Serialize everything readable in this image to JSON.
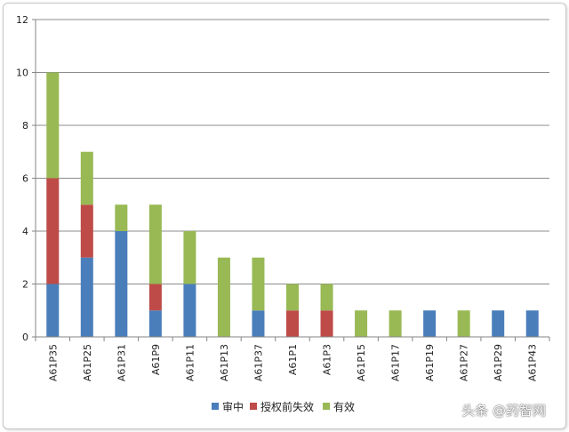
{
  "chart_data": {
    "type": "bar",
    "stacked": true,
    "categories": [
      "A61P35",
      "A61P25",
      "A61P31",
      "A61P9",
      "A61P11",
      "A61P13",
      "A61P37",
      "A61P1",
      "A61P3",
      "A61P15",
      "A61P17",
      "A61P19",
      "A61P27",
      "A61P29",
      "A61P43"
    ],
    "series": [
      {
        "name": "审中",
        "color": "#4a7ebb",
        "values": [
          2,
          3,
          4,
          1,
          2,
          0,
          1,
          0,
          0,
          0,
          0,
          1,
          0,
          1,
          1
        ]
      },
      {
        "name": "授权前失效",
        "color": "#be4b48",
        "values": [
          4,
          2,
          0,
          1,
          0,
          0,
          0,
          1,
          1,
          0,
          0,
          0,
          0,
          0,
          0
        ]
      },
      {
        "name": "有效",
        "color": "#98b954",
        "values": [
          4,
          2,
          1,
          3,
          2,
          3,
          2,
          1,
          1,
          1,
          1,
          0,
          1,
          0,
          0
        ]
      }
    ],
    "yticks": [
      "0",
      "2",
      "4",
      "6",
      "8",
      "10",
      "12"
    ],
    "ylim": [
      0,
      12
    ],
    "grid": true,
    "legend_position": "bottom"
  },
  "watermark": "头条 @药智网"
}
